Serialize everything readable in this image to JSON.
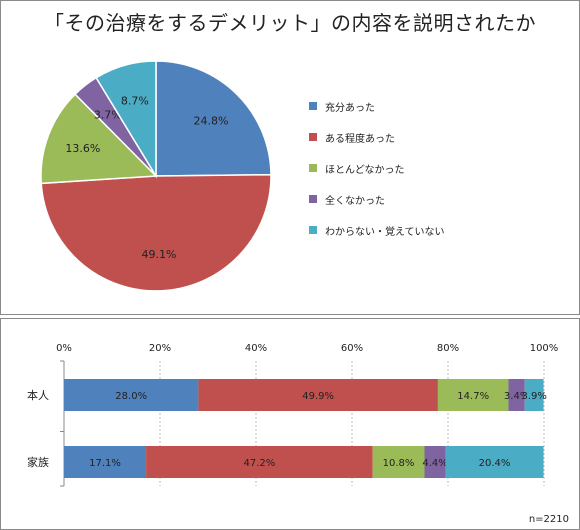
{
  "chart_data": [
    {
      "type": "pie",
      "title": "「その治療をするデメリット」の内容を説明されたか",
      "slices": [
        {
          "label": "充分あった",
          "value": 24.8,
          "value_label": "24.8%",
          "color": "#4f81bd"
        },
        {
          "label": "ある程度あった",
          "value": 49.1,
          "value_label": "49.1%",
          "color": "#c0504d"
        },
        {
          "label": "ほとんどなかった",
          "value": 13.6,
          "value_label": "13.6%",
          "color": "#9bbb59"
        },
        {
          "label": "全くなかった",
          "value": 3.7,
          "value_label": "3.7%",
          "color": "#8064a2"
        },
        {
          "label": "わからない・覚えていない",
          "value": 8.7,
          "value_label": "8.7%",
          "color": "#4bacc6"
        }
      ],
      "legend_position": "right"
    },
    {
      "type": "bar",
      "orientation": "horizontal",
      "stacked": "percent",
      "categories": [
        "本人",
        "家族"
      ],
      "series": [
        {
          "name": "充分あった",
          "values": [
            28.0,
            17.1
          ],
          "labels": [
            "28.0%",
            "17.1%"
          ],
          "color": "#4f81bd"
        },
        {
          "name": "ある程度あった",
          "values": [
            49.9,
            47.2
          ],
          "labels": [
            "49.9%",
            "47.2%"
          ],
          "color": "#c0504d"
        },
        {
          "name": "ほとんどなかった",
          "values": [
            14.7,
            10.8
          ],
          "labels": [
            "14.7%",
            "10.8%"
          ],
          "color": "#9bbb59"
        },
        {
          "name": "全くなかった",
          "values": [
            3.4,
            4.4
          ],
          "labels": [
            "3.4%",
            "4.4%"
          ],
          "color": "#8064a2"
        },
        {
          "name": "わからない・覚えていない",
          "values": [
            3.9,
            20.4
          ],
          "labels": [
            "3.9%",
            "20.4%"
          ],
          "color": "#4bacc6"
        }
      ],
      "xlim": [
        0,
        100
      ],
      "x_ticks": [
        "0%",
        "20%",
        "40%",
        "60%",
        "80%",
        "100%"
      ],
      "x_axis_position": "top",
      "note": "n=2210"
    }
  ]
}
